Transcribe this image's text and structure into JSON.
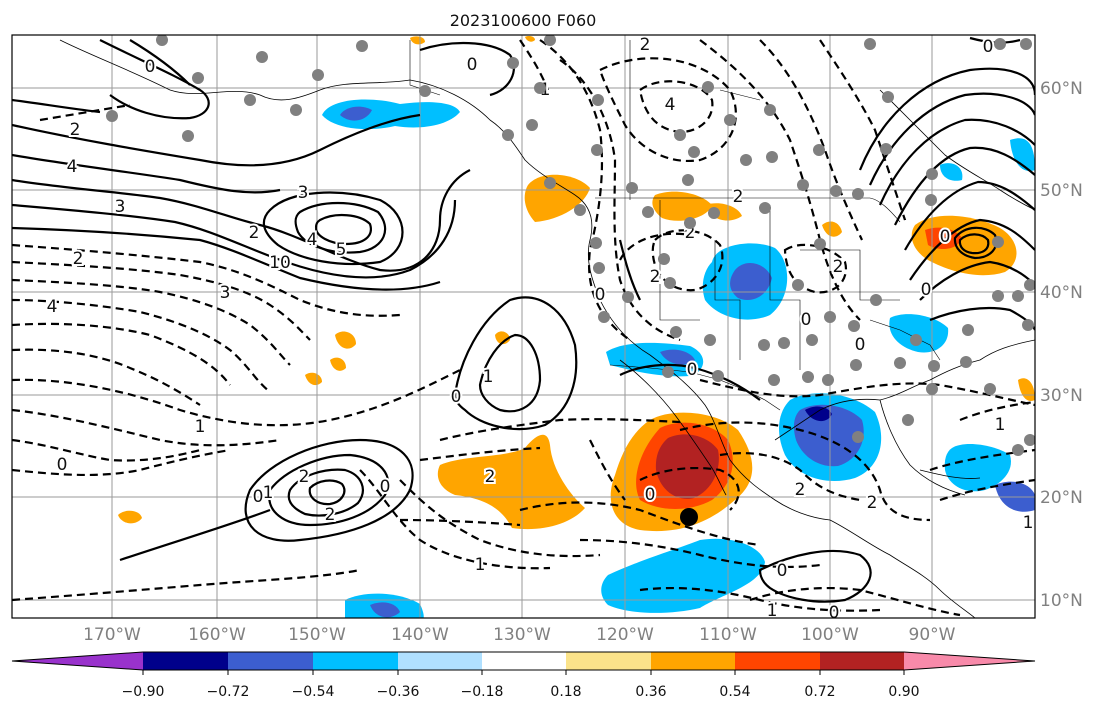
{
  "title": "2023100600 F060",
  "lon_labels": [
    "170°W",
    "160°W",
    "150°W",
    "140°W",
    "130°W",
    "120°W",
    "110°W",
    "100°W",
    "90°W"
  ],
  "lat_labels": [
    "60°N",
    "50°N",
    "40°N",
    "30°N",
    "20°N",
    "10°N"
  ],
  "colorbar": {
    "ticks": [
      "−0.90",
      "−0.72",
      "−0.54",
      "−0.36",
      "−0.18",
      "0.18",
      "0.36",
      "0.54",
      "0.72",
      "0.90"
    ],
    "colors": [
      "#9932cc",
      "#00008b",
      "#3c5ecf",
      "#00bfff",
      "#b0e0ff",
      "#ffffff",
      "#fbe38a",
      "#ffa500",
      "#ff4500",
      "#b22222",
      "#f88aaa"
    ]
  },
  "contour_labels": [
    "2",
    "4",
    "3",
    "3",
    "2",
    "4",
    "5",
    "10",
    "2",
    "3",
    "4",
    "1",
    "0",
    "1",
    "0",
    "2",
    "2",
    "0",
    "4",
    "2",
    "0",
    "0",
    "1",
    "2",
    "0",
    "2",
    "0",
    "0",
    "0",
    "1",
    "0",
    "1",
    "1",
    "1",
    "2",
    "0",
    "0",
    "2",
    "0",
    "2",
    "2",
    "0",
    "2",
    "0",
    "0",
    "1"
  ],
  "marker": "center-dot"
}
